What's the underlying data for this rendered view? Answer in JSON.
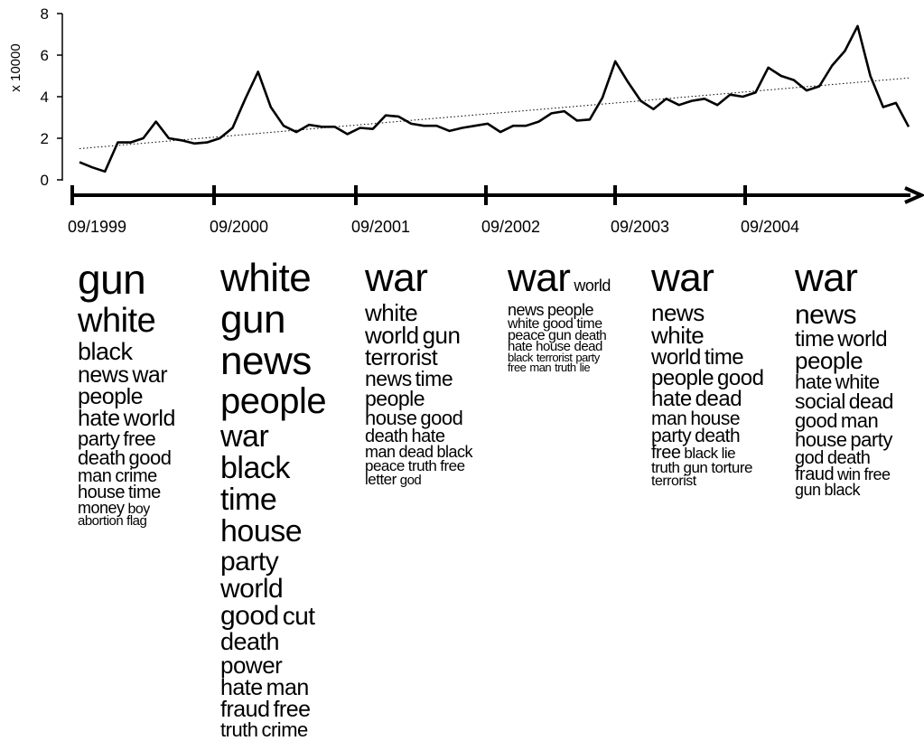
{
  "chart_data": {
    "type": "line",
    "ylabel": "x 10000",
    "ylim": [
      0,
      8
    ],
    "yticks": [
      "8",
      "6",
      "4",
      "2",
      "0"
    ],
    "xtick_labels": [
      "09/1999",
      "09/2000",
      "09/2001",
      "09/2002",
      "09/2003",
      "09/2004"
    ],
    "series": [
      {
        "values": [
          0.85,
          0.6,
          0.4,
          1.8,
          1.8,
          2.0,
          2.8,
          2.0,
          1.9,
          1.75,
          1.8,
          2.0,
          2.5,
          3.9,
          5.2,
          3.5,
          2.6,
          2.3,
          2.65,
          2.55,
          2.55,
          2.2,
          2.5,
          2.45,
          3.1,
          3.05,
          2.7,
          2.6,
          2.6,
          2.35,
          2.5,
          2.6,
          2.7,
          2.3,
          2.6,
          2.6,
          2.8,
          3.2,
          3.3,
          2.85,
          2.9,
          3.95,
          5.7,
          4.7,
          3.8,
          3.4,
          3.9,
          3.6,
          3.8,
          3.9,
          3.6,
          4.1,
          4.0,
          4.2,
          5.4,
          5.0,
          4.8,
          4.3,
          4.5,
          5.5,
          6.2,
          7.4,
          5.0,
          3.5,
          3.7,
          2.55
        ]
      }
    ],
    "trendline": {
      "style": "dotted",
      "start": 1.5,
      "end": 4.9
    },
    "grid": false,
    "legend": "none"
  },
  "clouds": [
    {
      "label": "09/1999",
      "lines": [
        [
          {
            "t": "gun",
            "s": 46
          }
        ],
        [
          {
            "t": "white",
            "s": 38
          }
        ],
        [
          {
            "t": "black",
            "s": 27
          }
        ],
        [
          {
            "t": "news",
            "s": 25
          },
          {
            "t": "war",
            "s": 25
          }
        ],
        [
          {
            "t": "people",
            "s": 25
          }
        ],
        [
          {
            "t": "hate",
            "s": 25
          },
          {
            "t": "world",
            "s": 25
          }
        ],
        [
          {
            "t": "party",
            "s": 22
          },
          {
            "t": "free",
            "s": 22
          }
        ],
        [
          {
            "t": "death",
            "s": 22
          },
          {
            "t": "good",
            "s": 22
          }
        ],
        [
          {
            "t": "man",
            "s": 20
          },
          {
            "t": "crime",
            "s": 20
          }
        ],
        [
          {
            "t": "house",
            "s": 20
          },
          {
            "t": "time",
            "s": 20
          }
        ],
        [
          {
            "t": "money",
            "s": 18
          },
          {
            "t": "boy",
            "s": 16
          }
        ],
        [
          {
            "t": "abortion",
            "s": 15
          },
          {
            "t": "flag",
            "s": 15
          }
        ]
      ]
    },
    {
      "label": "09/2000",
      "lines": [
        [
          {
            "t": "white",
            "s": 44
          }
        ],
        [
          {
            "t": "gun",
            "s": 44
          }
        ],
        [
          {
            "t": "news",
            "s": 44
          }
        ],
        [
          {
            "t": "people",
            "s": 40
          }
        ],
        [
          {
            "t": "war",
            "s": 34
          }
        ],
        [
          {
            "t": "black",
            "s": 34
          }
        ],
        [
          {
            "t": "time",
            "s": 34
          }
        ],
        [
          {
            "t": "house",
            "s": 34
          }
        ],
        [
          {
            "t": "party",
            "s": 30
          }
        ],
        [
          {
            "t": "world",
            "s": 30
          }
        ],
        [
          {
            "t": "good",
            "s": 30
          },
          {
            "t": "cut",
            "s": 28
          }
        ],
        [
          {
            "t": "death",
            "s": 27
          }
        ],
        [
          {
            "t": "power",
            "s": 26
          }
        ],
        [
          {
            "t": "hate",
            "s": 25
          },
          {
            "t": "man",
            "s": 25
          }
        ],
        [
          {
            "t": "fraud",
            "s": 25
          },
          {
            "t": "free",
            "s": 25
          }
        ],
        [
          {
            "t": "truth",
            "s": 22
          },
          {
            "t": "crime",
            "s": 22
          }
        ]
      ]
    },
    {
      "label": "09/2001",
      "lines": [
        [
          {
            "t": "war",
            "s": 44
          }
        ],
        [
          {
            "t": "white",
            "s": 26
          }
        ],
        [
          {
            "t": "world",
            "s": 26
          },
          {
            "t": "gun",
            "s": 26
          }
        ],
        [
          {
            "t": "terrorist",
            "s": 25
          }
        ],
        [
          {
            "t": "news",
            "s": 23
          },
          {
            "t": "time",
            "s": 23
          }
        ],
        [
          {
            "t": "people",
            "s": 23
          }
        ],
        [
          {
            "t": "house",
            "s": 22
          },
          {
            "t": "good",
            "s": 22
          }
        ],
        [
          {
            "t": "death",
            "s": 20
          },
          {
            "t": "hate",
            "s": 20
          }
        ],
        [
          {
            "t": "man",
            "s": 18
          },
          {
            "t": "dead",
            "s": 18
          },
          {
            "t": "black",
            "s": 18
          }
        ],
        [
          {
            "t": "peace",
            "s": 17
          },
          {
            "t": "truth",
            "s": 17
          },
          {
            "t": "free",
            "s": 17
          }
        ],
        [
          {
            "t": "letter",
            "s": 17
          },
          {
            "t": "god",
            "s": 15
          }
        ]
      ]
    },
    {
      "label": "09/2002",
      "lines": [
        [
          {
            "t": "war",
            "s": 44
          },
          {
            "t": "world",
            "s": 18
          }
        ],
        [
          {
            "t": "news",
            "s": 18
          },
          {
            "t": "people",
            "s": 18
          }
        ],
        [
          {
            "t": "white",
            "s": 16
          },
          {
            "t": "good",
            "s": 16
          },
          {
            "t": "time",
            "s": 16
          }
        ],
        [
          {
            "t": "peace",
            "s": 16
          },
          {
            "t": "gun",
            "s": 16
          },
          {
            "t": "death",
            "s": 15
          }
        ],
        [
          {
            "t": "hate",
            "s": 15
          },
          {
            "t": "house",
            "s": 15
          },
          {
            "t": "dead",
            "s": 15
          }
        ],
        [
          {
            "t": "black",
            "s": 13
          },
          {
            "t": "terrorist",
            "s": 13
          },
          {
            "t": "party",
            "s": 13
          }
        ],
        [
          {
            "t": "free",
            "s": 13
          },
          {
            "t": "man",
            "s": 13
          },
          {
            "t": "truth",
            "s": 13
          },
          {
            "t": "lie",
            "s": 13
          }
        ]
      ]
    },
    {
      "label": "09/2003",
      "lines": [
        [
          {
            "t": "war",
            "s": 44
          }
        ],
        [
          {
            "t": "news",
            "s": 26
          }
        ],
        [
          {
            "t": "white",
            "s": 26
          }
        ],
        [
          {
            "t": "world",
            "s": 24
          },
          {
            "t": "time",
            "s": 24
          }
        ],
        [
          {
            "t": "people",
            "s": 24
          },
          {
            "t": "good",
            "s": 24
          }
        ],
        [
          {
            "t": "hate",
            "s": 24
          },
          {
            "t": "dead",
            "s": 24
          }
        ],
        [
          {
            "t": "man",
            "s": 21
          },
          {
            "t": "house",
            "s": 21
          }
        ],
        [
          {
            "t": "party",
            "s": 21
          },
          {
            "t": "death",
            "s": 21
          }
        ],
        [
          {
            "t": "free",
            "s": 20
          },
          {
            "t": "black",
            "s": 17
          },
          {
            "t": "lie",
            "s": 17
          }
        ],
        [
          {
            "t": "truth",
            "s": 17
          },
          {
            "t": "gun",
            "s": 17
          },
          {
            "t": "torture",
            "s": 17
          }
        ],
        [
          {
            "t": "terrorist",
            "s": 16
          }
        ]
      ]
    },
    {
      "label": "09/2004",
      "lines": [
        [
          {
            "t": "war",
            "s": 44
          }
        ],
        [
          {
            "t": "news",
            "s": 30
          }
        ],
        [
          {
            "t": "time",
            "s": 24
          },
          {
            "t": "world",
            "s": 24
          }
        ],
        [
          {
            "t": "people",
            "s": 26
          }
        ],
        [
          {
            "t": "hate",
            "s": 22
          },
          {
            "t": "white",
            "s": 22
          }
        ],
        [
          {
            "t": "social",
            "s": 23
          },
          {
            "t": "dead",
            "s": 23
          }
        ],
        [
          {
            "t": "good",
            "s": 22
          },
          {
            "t": "man",
            "s": 22
          }
        ],
        [
          {
            "t": "house",
            "s": 22
          },
          {
            "t": "party",
            "s": 22
          }
        ],
        [
          {
            "t": "god",
            "s": 20
          },
          {
            "t": "death",
            "s": 20
          }
        ],
        [
          {
            "t": "fraud",
            "s": 20
          },
          {
            "t": "win",
            "s": 18
          },
          {
            "t": "free",
            "s": 18
          }
        ],
        [
          {
            "t": "gun",
            "s": 18
          },
          {
            "t": "black",
            "s": 18
          }
        ]
      ]
    }
  ]
}
